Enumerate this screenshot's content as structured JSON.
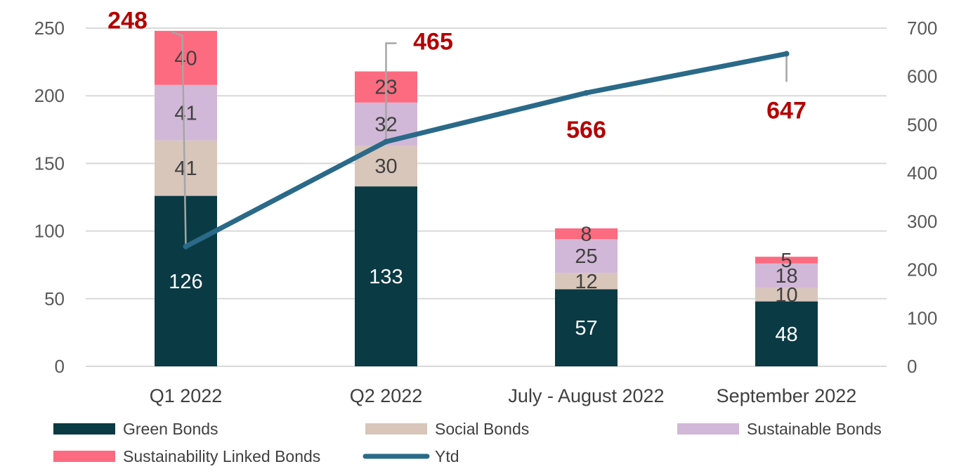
{
  "chart_data": {
    "type": "bar",
    "stacked": true,
    "categories": [
      "Q1  2022",
      "Q2  2022",
      "July - August 2022",
      "September 2022"
    ],
    "series": [
      {
        "name": "Green Bonds",
        "color": "#0a3a44",
        "label_color": "#ffffff",
        "values": [
          126,
          133,
          57,
          48
        ]
      },
      {
        "name": "Social Bonds",
        "color": "#d8c6ba",
        "label_color": "#404040",
        "values": [
          41,
          30,
          12,
          10
        ]
      },
      {
        "name": "Sustainable Bonds",
        "color": "#d2b8d8",
        "label_color": "#404040",
        "values": [
          41,
          32,
          25,
          18
        ]
      },
      {
        "name": "Sustainability Linked Bonds",
        "color": "#fc6b80",
        "label_color": "#404040",
        "values": [
          40,
          23,
          8,
          5
        ]
      }
    ],
    "line_series": {
      "name": "Ytd",
      "axis": "right",
      "color": "#2a6a88",
      "values": [
        248,
        465,
        566,
        647
      ]
    },
    "ylim_left": [
      0,
      250
    ],
    "yticks_left": [
      0,
      50,
      100,
      150,
      200,
      250
    ],
    "ylim_right": [
      0,
      700
    ],
    "yticks_right": [
      0,
      100,
      200,
      300,
      400,
      500,
      600,
      700
    ],
    "grid": true,
    "legend_position": "bottom",
    "title": "",
    "xlabel": "",
    "ylabel": ""
  }
}
